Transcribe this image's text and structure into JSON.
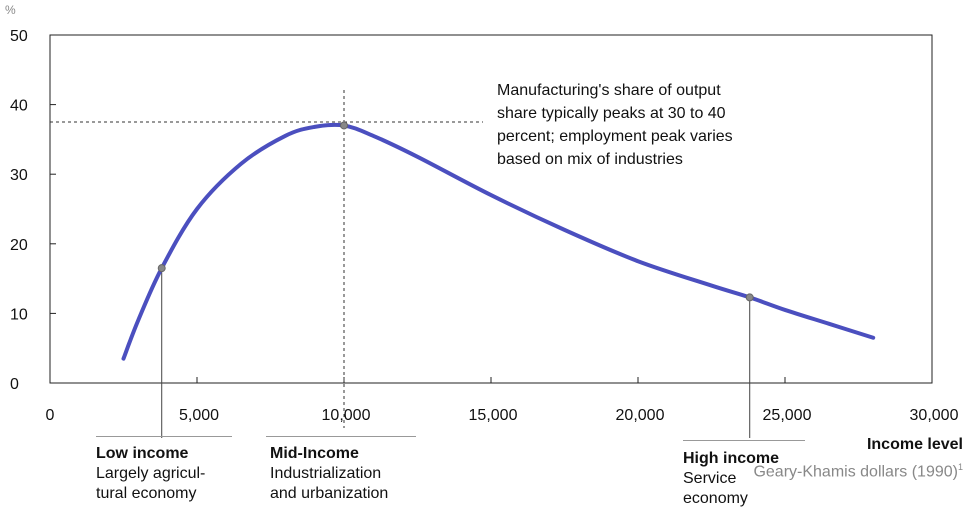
{
  "chart_data": {
    "type": "line",
    "y_unit": "%",
    "ylim": [
      0,
      50
    ],
    "xlim": [
      0,
      30000
    ],
    "y_ticks": [
      "0",
      "10",
      "20",
      "30",
      "40",
      "50"
    ],
    "x_ticks": [
      "0",
      "5,000",
      "10,000",
      "15,000",
      "20,000",
      "25,000",
      "30,000"
    ],
    "x_tick_values": [
      0,
      5000,
      10000,
      15000,
      20000,
      25000,
      30000
    ],
    "y_tick_values": [
      0,
      10,
      20,
      30,
      40,
      50
    ],
    "xlabel": "Income level",
    "xlabel_sub": "Geary-Khamis dollars (1990)",
    "xlabel_sub_sup": "1",
    "series": [
      {
        "color": "#4b4fbf",
        "x": [
          2500,
          3000,
          3800,
          5000,
          6500,
          8000,
          9000,
          10000,
          11000,
          12500,
          15000,
          17500,
          20000,
          22500,
          23800,
          25000,
          26500,
          28000
        ],
        "y": [
          3.5,
          9,
          16.5,
          25,
          31.5,
          35.5,
          36.8,
          37,
          35.5,
          32.5,
          27,
          22,
          17.5,
          14,
          12.3,
          10.5,
          8.5,
          6.5
        ]
      }
    ],
    "markers": [
      {
        "x": 3800,
        "y": 16.5
      },
      {
        "x": 10000,
        "y": 37
      },
      {
        "x": 23800,
        "y": 12.3
      }
    ],
    "peak_reference": {
      "x": 10000,
      "y": 37.5
    },
    "annotation": [
      "Manufacturing's share of output",
      "share typically peaks at 30 to 40",
      "percent; employment peak varies",
      "based on mix of industries"
    ],
    "stages": [
      {
        "x": 3800,
        "title": "Low income",
        "desc": [
          "Largely agricul-",
          "tural economy"
        ]
      },
      {
        "x": 10000,
        "title": "Mid-Income",
        "desc": [
          "Industrialization",
          "and urbanization"
        ]
      },
      {
        "x": 23800,
        "title": "High income",
        "desc": [
          "Service",
          "economy"
        ]
      }
    ]
  }
}
